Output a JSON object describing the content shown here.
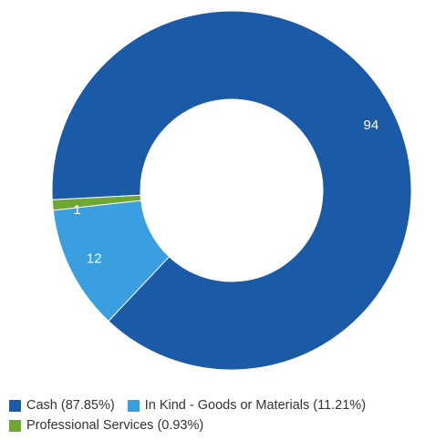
{
  "chart_data": {
    "type": "pie",
    "donut": true,
    "title": "",
    "legend_position": "bottom",
    "series": [
      {
        "name": "Cash (87.85%)",
        "value": 94,
        "label": "94",
        "color": "#1b5aa6"
      },
      {
        "name": "In Kind - Goods or Materials (11.21%)",
        "value": 12,
        "label": "12",
        "color": "#3a9fe0"
      },
      {
        "name": "Professional Services (0.93%)",
        "value": 1,
        "label": "1",
        "color": "#6ea832"
      }
    ]
  }
}
